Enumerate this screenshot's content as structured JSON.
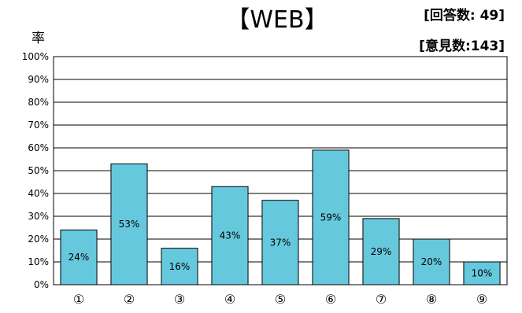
{
  "chart_data": {
    "type": "bar",
    "title": "【WEB】",
    "ylabel": "率",
    "info": [
      "[回答数: 49]",
      "[意見数:143]"
    ],
    "categories": [
      "①",
      "②",
      "③",
      "④",
      "⑤",
      "⑥",
      "⑦",
      "⑧",
      "⑨"
    ],
    "values": [
      24,
      53,
      16,
      43,
      37,
      59,
      29,
      20,
      10
    ],
    "data_labels": [
      "24%",
      "53%",
      "16%",
      "43%",
      "37%",
      "59%",
      "29%",
      "20%",
      "10%"
    ],
    "yticks": [
      "0%",
      "10%",
      "20%",
      "30%",
      "40%",
      "50%",
      "60%",
      "70%",
      "80%",
      "90%",
      "100%"
    ],
    "ylim": [
      0,
      100
    ],
    "grid": true,
    "colors": {
      "bar": "#66C8DC",
      "bar_edge": "#000000",
      "grid": "#000000"
    }
  }
}
